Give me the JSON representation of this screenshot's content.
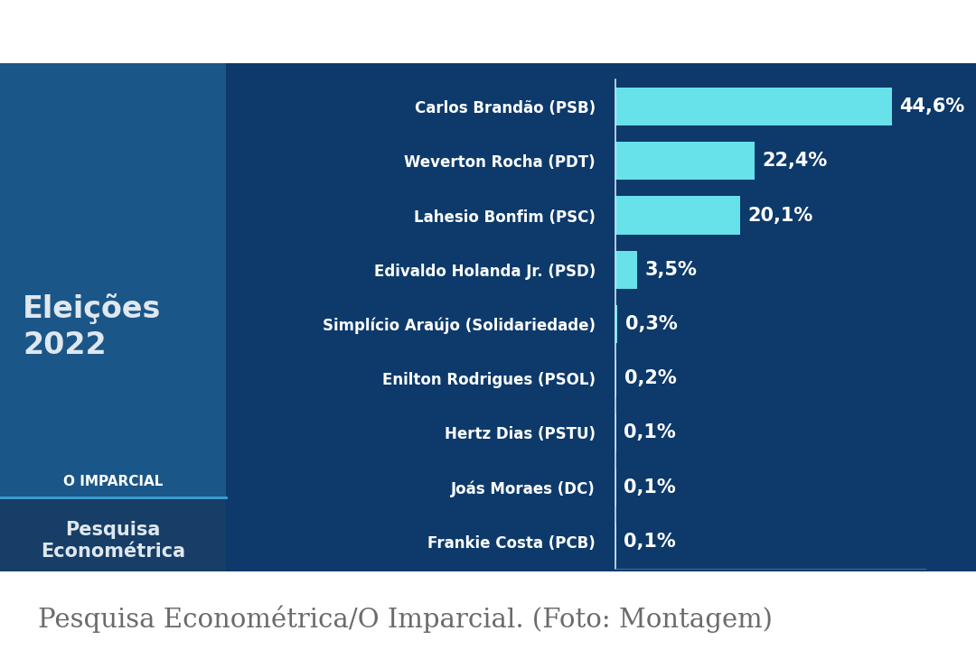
{
  "chart_data": {
    "type": "bar",
    "orientation": "horizontal",
    "title": "Eleições\n2022",
    "subtitle": "Pesquisa\nEconométrica",
    "annotations": [
      "O IMPARCIAL",
      "Pesquisa Econométrica/O Imparcial. (Foto: Montagem)"
    ],
    "categories": [
      "Carlos Brandão (PSB)",
      "Weverton Rocha (PDT)",
      "Lahesio Bonfim (PSC)",
      "Edivaldo Holanda Jr. (PSD)",
      "Simplício Araújo (Solidariedade)",
      "Enilton Rodrigues (PSOL)",
      "Hertz Dias (PSTU)",
      "Joás Moraes (DC)",
      "Frankie Costa (PCB)"
    ],
    "values": [
      44.6,
      22.4,
      20.1,
      3.5,
      0.3,
      0.2,
      0.1,
      0.1,
      0.1
    ],
    "value_labels": [
      "44,6%",
      "22,4%",
      "20,1%",
      "3,5%",
      "0,3%",
      "0,2%",
      "0,1%",
      "0,1%",
      "0,1%"
    ],
    "color": "#67e1ea",
    "xlim": [
      0,
      50
    ],
    "data_labels": true,
    "tick_labels": "y",
    "grid": false
  }
}
